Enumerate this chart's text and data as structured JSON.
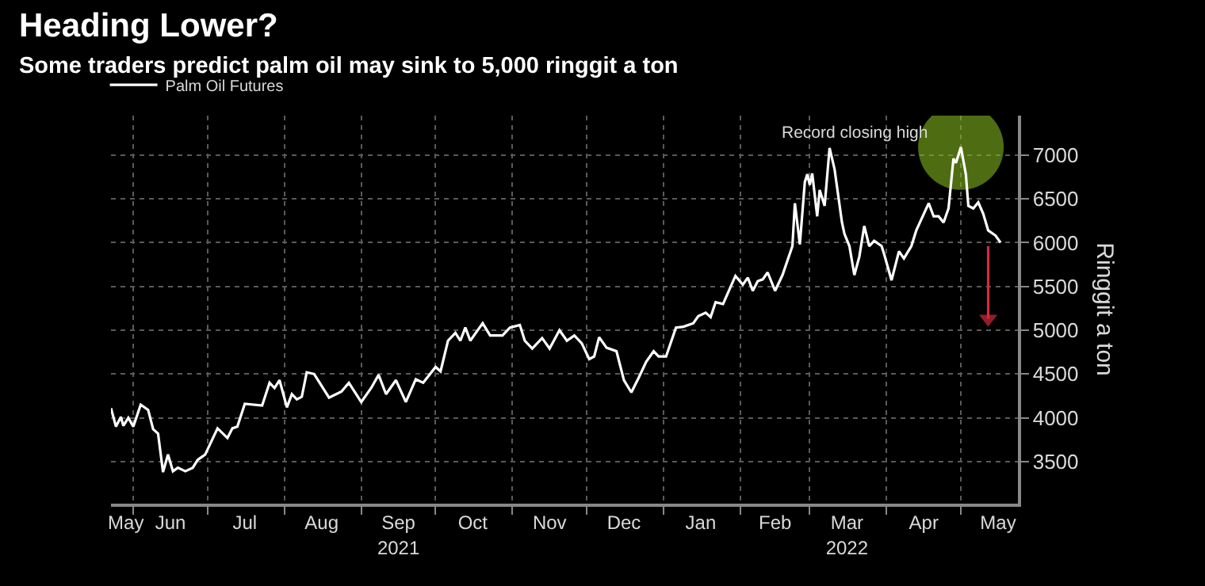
{
  "chart_data": {
    "type": "line",
    "title": "Heading Lower?",
    "subtitle": "Some traders predict palm oil may sink to 5,000 ringgit a ton",
    "ylabel": "Ringgit a ton",
    "annotations": [
      {
        "text": "Record closing high",
        "x": "2022-05-01",
        "y": 7090
      }
    ],
    "xlim": [
      "2021-05-23",
      "2022-05-24"
    ],
    "xticks": [
      {
        "value": "2021-05-29",
        "label": "May"
      },
      {
        "value": "2021-06-16",
        "label": "Jun"
      },
      {
        "value": "2021-07-16",
        "label": "Jul"
      },
      {
        "value": "2021-08-16",
        "label": "Aug"
      },
      {
        "value": "2021-09-16",
        "label": "Sep\n2021"
      },
      {
        "value": "2021-10-16",
        "label": "Oct"
      },
      {
        "value": "2021-11-16",
        "label": "Nov"
      },
      {
        "value": "2021-12-16",
        "label": "Dec"
      },
      {
        "value": "2022-01-16",
        "label": "Jan"
      },
      {
        "value": "2022-02-15",
        "label": "Feb"
      },
      {
        "value": "2022-03-16",
        "label": "Mar\n2022"
      },
      {
        "value": "2022-04-16",
        "label": "Apr"
      },
      {
        "value": "2022-05-16",
        "label": "May"
      }
    ],
    "ylim": [
      3020,
      7450
    ],
    "yticks": [
      3500,
      4000,
      4500,
      5000,
      5500,
      6000,
      6500,
      7000
    ],
    "grid": true,
    "legend": "top left",
    "marker": "none",
    "line_style": "solid",
    "series": [
      {
        "color": "#82b41e",
        "type": "scatter",
        "marker": "circle",
        "x": [
          "2022-05-01"
        ],
        "values": [
          7090
        ]
      },
      {
        "name": "Palm Oil Futures",
        "color": "#ffffff",
        "x": [
          "2021-05-23",
          "2021-05-25",
          "2021-05-27",
          "2021-05-28",
          "2021-05-30",
          "2021-06-01",
          "2021-06-04",
          "2021-06-07",
          "2021-06-09",
          "2021-06-11",
          "2021-06-13",
          "2021-06-15",
          "2021-06-17",
          "2021-06-19",
          "2021-06-22",
          "2021-06-25",
          "2021-06-27",
          "2021-06-30",
          "2021-07-05",
          "2021-07-09",
          "2021-07-11",
          "2021-07-13",
          "2021-07-16",
          "2021-07-23",
          "2021-07-26",
          "2021-07-28",
          "2021-07-30",
          "2021-08-02",
          "2021-08-04",
          "2021-08-06",
          "2021-08-08",
          "2021-08-10",
          "2021-08-13",
          "2021-08-19",
          "2021-08-24",
          "2021-08-27",
          "2021-09-01",
          "2021-09-05",
          "2021-09-08",
          "2021-09-11",
          "2021-09-15",
          "2021-09-19",
          "2021-09-23",
          "2021-09-26",
          "2021-10-01",
          "2021-10-03",
          "2021-10-06",
          "2021-10-09",
          "2021-10-11",
          "2021-10-13",
          "2021-10-15",
          "2021-10-17",
          "2021-10-20",
          "2021-10-23",
          "2021-10-28",
          "2021-10-31",
          "2021-11-04",
          "2021-11-06",
          "2021-11-09",
          "2021-11-13",
          "2021-11-16",
          "2021-11-20",
          "2021-11-23",
          "2021-11-26",
          "2021-11-29",
          "2021-12-02",
          "2021-12-04",
          "2021-12-06",
          "2021-12-09",
          "2021-12-13",
          "2021-12-16",
          "2021-12-19",
          "2021-12-22",
          "2021-12-25",
          "2021-12-28",
          "2021-12-30",
          "2022-01-02",
          "2022-01-06",
          "2022-01-09",
          "2022-01-13",
          "2022-01-15",
          "2022-01-18",
          "2022-01-20",
          "2022-01-22",
          "2022-01-25",
          "2022-01-30",
          "2022-02-02",
          "2022-02-04",
          "2022-02-06",
          "2022-02-08",
          "2022-02-10",
          "2022-02-12",
          "2022-02-15",
          "2022-02-18",
          "2022-02-22",
          "2022-02-23",
          "2022-02-25",
          "2022-02-27",
          "2022-02-28",
          "2022-03-01",
          "2022-03-02",
          "2022-03-04",
          "2022-03-05",
          "2022-03-07",
          "2022-03-09",
          "2022-03-11",
          "2022-03-14",
          "2022-03-15",
          "2022-03-17",
          "2022-03-19",
          "2022-03-21",
          "2022-03-23",
          "2022-03-25",
          "2022-03-27",
          "2022-03-30",
          "2022-03-31",
          "2022-04-03",
          "2022-04-06",
          "2022-04-08",
          "2022-04-11",
          "2022-04-13",
          "2022-04-18",
          "2022-04-20",
          "2022-04-22",
          "2022-04-24",
          "2022-04-26",
          "2022-04-28",
          "2022-04-29",
          "2022-05-01",
          "2022-05-03",
          "2022-05-04",
          "2022-05-06",
          "2022-05-08",
          "2022-05-10",
          "2022-05-12",
          "2022-05-15",
          "2022-05-17"
        ],
        "values": [
          4110,
          3900,
          4010,
          3910,
          4000,
          3900,
          4150,
          4090,
          3870,
          3820,
          3380,
          3580,
          3390,
          3430,
          3390,
          3430,
          3520,
          3580,
          3880,
          3770,
          3880,
          3900,
          4160,
          4140,
          4400,
          4340,
          4430,
          4120,
          4270,
          4210,
          4240,
          4520,
          4500,
          4230,
          4300,
          4400,
          4180,
          4340,
          4490,
          4270,
          4430,
          4180,
          4440,
          4400,
          4580,
          4530,
          4880,
          4970,
          4880,
          5030,
          4880,
          4960,
          5080,
          4940,
          4940,
          5030,
          5060,
          4880,
          4790,
          4910,
          4790,
          5000,
          4880,
          4940,
          4850,
          4670,
          4700,
          4920,
          4800,
          4760,
          4430,
          4290,
          4460,
          4640,
          4760,
          4700,
          4700,
          5030,
          5040,
          5080,
          5160,
          5200,
          5150,
          5320,
          5300,
          5620,
          5520,
          5600,
          5450,
          5560,
          5580,
          5660,
          5450,
          5630,
          5960,
          6450,
          5980,
          6690,
          6780,
          6660,
          6790,
          6300,
          6600,
          6420,
          7080,
          6840,
          6230,
          6100,
          5960,
          5630,
          5840,
          6190,
          5960,
          6020,
          5960,
          5870,
          5570,
          5900,
          5820,
          5960,
          6140,
          6450,
          6300,
          6300,
          6230,
          6390,
          6960,
          6910,
          7090,
          6780,
          6420,
          6390,
          6460,
          6330,
          6140,
          6080,
          6000
        ]
      },
      {
        "color": "#d42a3c",
        "type": "line",
        "marker": "triangle",
        "x": [
          "2022-05-12",
          "2022-05-12"
        ],
        "values": [
          5960,
          5130
        ]
      }
    ]
  }
}
